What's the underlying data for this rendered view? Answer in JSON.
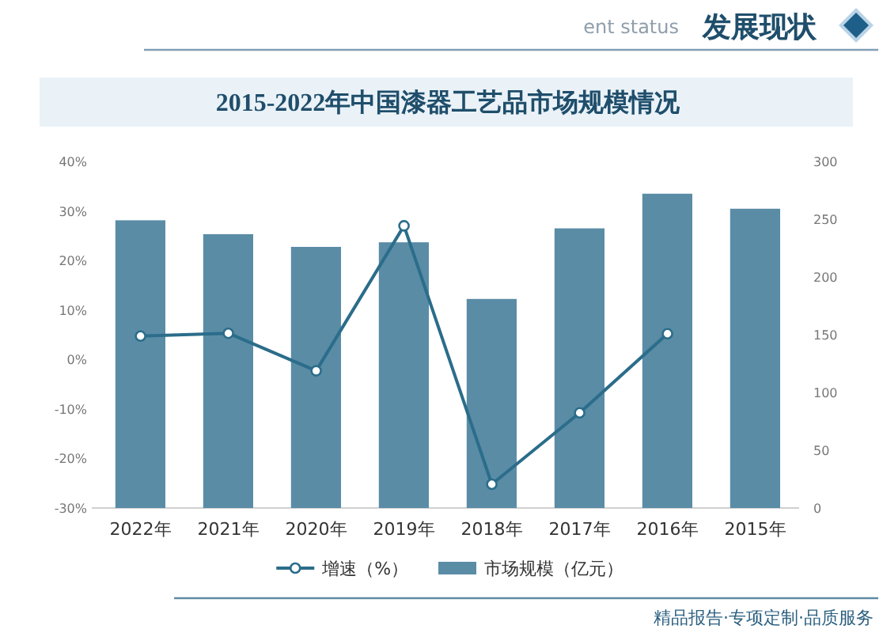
{
  "chart_data": {
    "type": "bar",
    "title": "2015-2022年中国漆器工艺品市场规模情况",
    "categories": [
      "2022年",
      "2021年",
      "2020年",
      "2019年",
      "2018年",
      "2017年",
      "2016年",
      "2015年"
    ],
    "series": [
      {
        "name": "市场规模（亿元）",
        "axis": "y2",
        "color": "#5a8ca6",
        "values": [
          249,
          237,
          226,
          230,
          181,
          242,
          272,
          259
        ]
      },
      {
        "name": "增速（%）",
        "type": "line",
        "color": "#2b6d8a",
        "values": [
          4.7,
          5.3,
          -2.3,
          27.0,
          -25.2,
          -10.8,
          5.2,
          null
        ]
      }
    ],
    "ylim": [
      -30,
      40
    ],
    "yticks": [
      {
        "value": -30,
        "label": "-30%"
      },
      {
        "value": -20,
        "label": "-20%"
      },
      {
        "value": -10,
        "label": "-10%"
      },
      {
        "value": 0,
        "label": "0%"
      },
      {
        "value": 10,
        "label": "10%"
      },
      {
        "value": 20,
        "label": "20%"
      },
      {
        "value": 30,
        "label": "30%"
      },
      {
        "value": 40,
        "label": "40%"
      }
    ],
    "y2lim": [
      0,
      300
    ],
    "y2ticks": [
      0,
      50,
      100,
      150,
      200,
      250,
      300
    ],
    "marker": "circle",
    "legend": "bottom",
    "annotations": [
      "发展现状",
      "ent status",
      "精品报告·专项定制·品质服务"
    ]
  }
}
